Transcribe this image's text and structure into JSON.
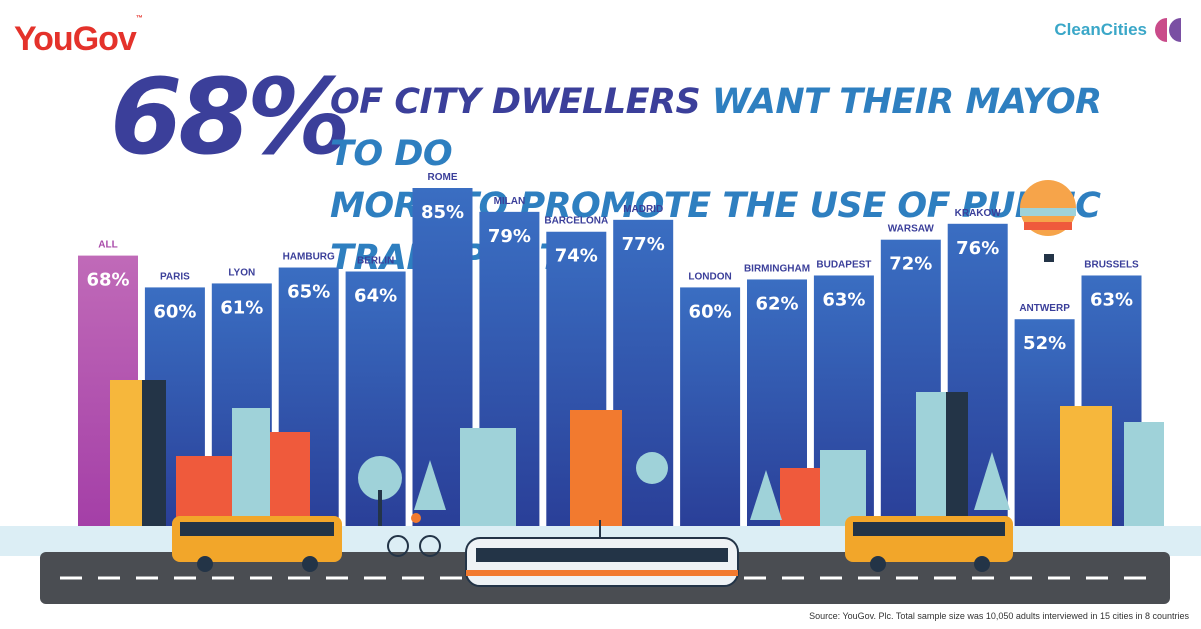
{
  "brand": {
    "left_logo": "YouGov",
    "left_logo_mark": "™",
    "right_logo": "CleanCities"
  },
  "headline": {
    "big_value": "68%",
    "line1_a": "OF CITY DWELLERS ",
    "line1_b": "WANT THEIR MAYOR TO DO",
    "line2": "MORE TO PROMOTE THE USE OF PUBLIC TRANSPORT"
  },
  "chart_data": {
    "type": "bar",
    "categories": [
      "ALL",
      "PARIS",
      "LYON",
      "HAMBURG",
      "BERLIN",
      "ROME",
      "MILAN",
      "BARCELONA",
      "MADRID",
      "LONDON",
      "BIRMINGHAM",
      "BUDAPEST",
      "WARSAW",
      "KRAKOW",
      "ANTWERP",
      "BRUSSELS"
    ],
    "values": [
      68,
      60,
      61,
      65,
      64,
      85,
      79,
      74,
      77,
      60,
      62,
      63,
      72,
      76,
      52,
      63
    ],
    "value_labels": [
      "68%",
      "60%",
      "61%",
      "65%",
      "64%",
      "85%",
      "79%",
      "74%",
      "77%",
      "60%",
      "62%",
      "63%",
      "72%",
      "76%",
      "52%",
      "63%"
    ],
    "unit": "%",
    "colors": {
      "all": "#a94aa9",
      "cities": "#2f4ea6",
      "cities_top": "#3a6ec2",
      "label": "#3b3f9a"
    },
    "highlight_category": "ALL"
  },
  "footnote": "Source: YouGov. Plc. Total sample size was 10,050 adults interviewed in 15 cities in 8 countries"
}
